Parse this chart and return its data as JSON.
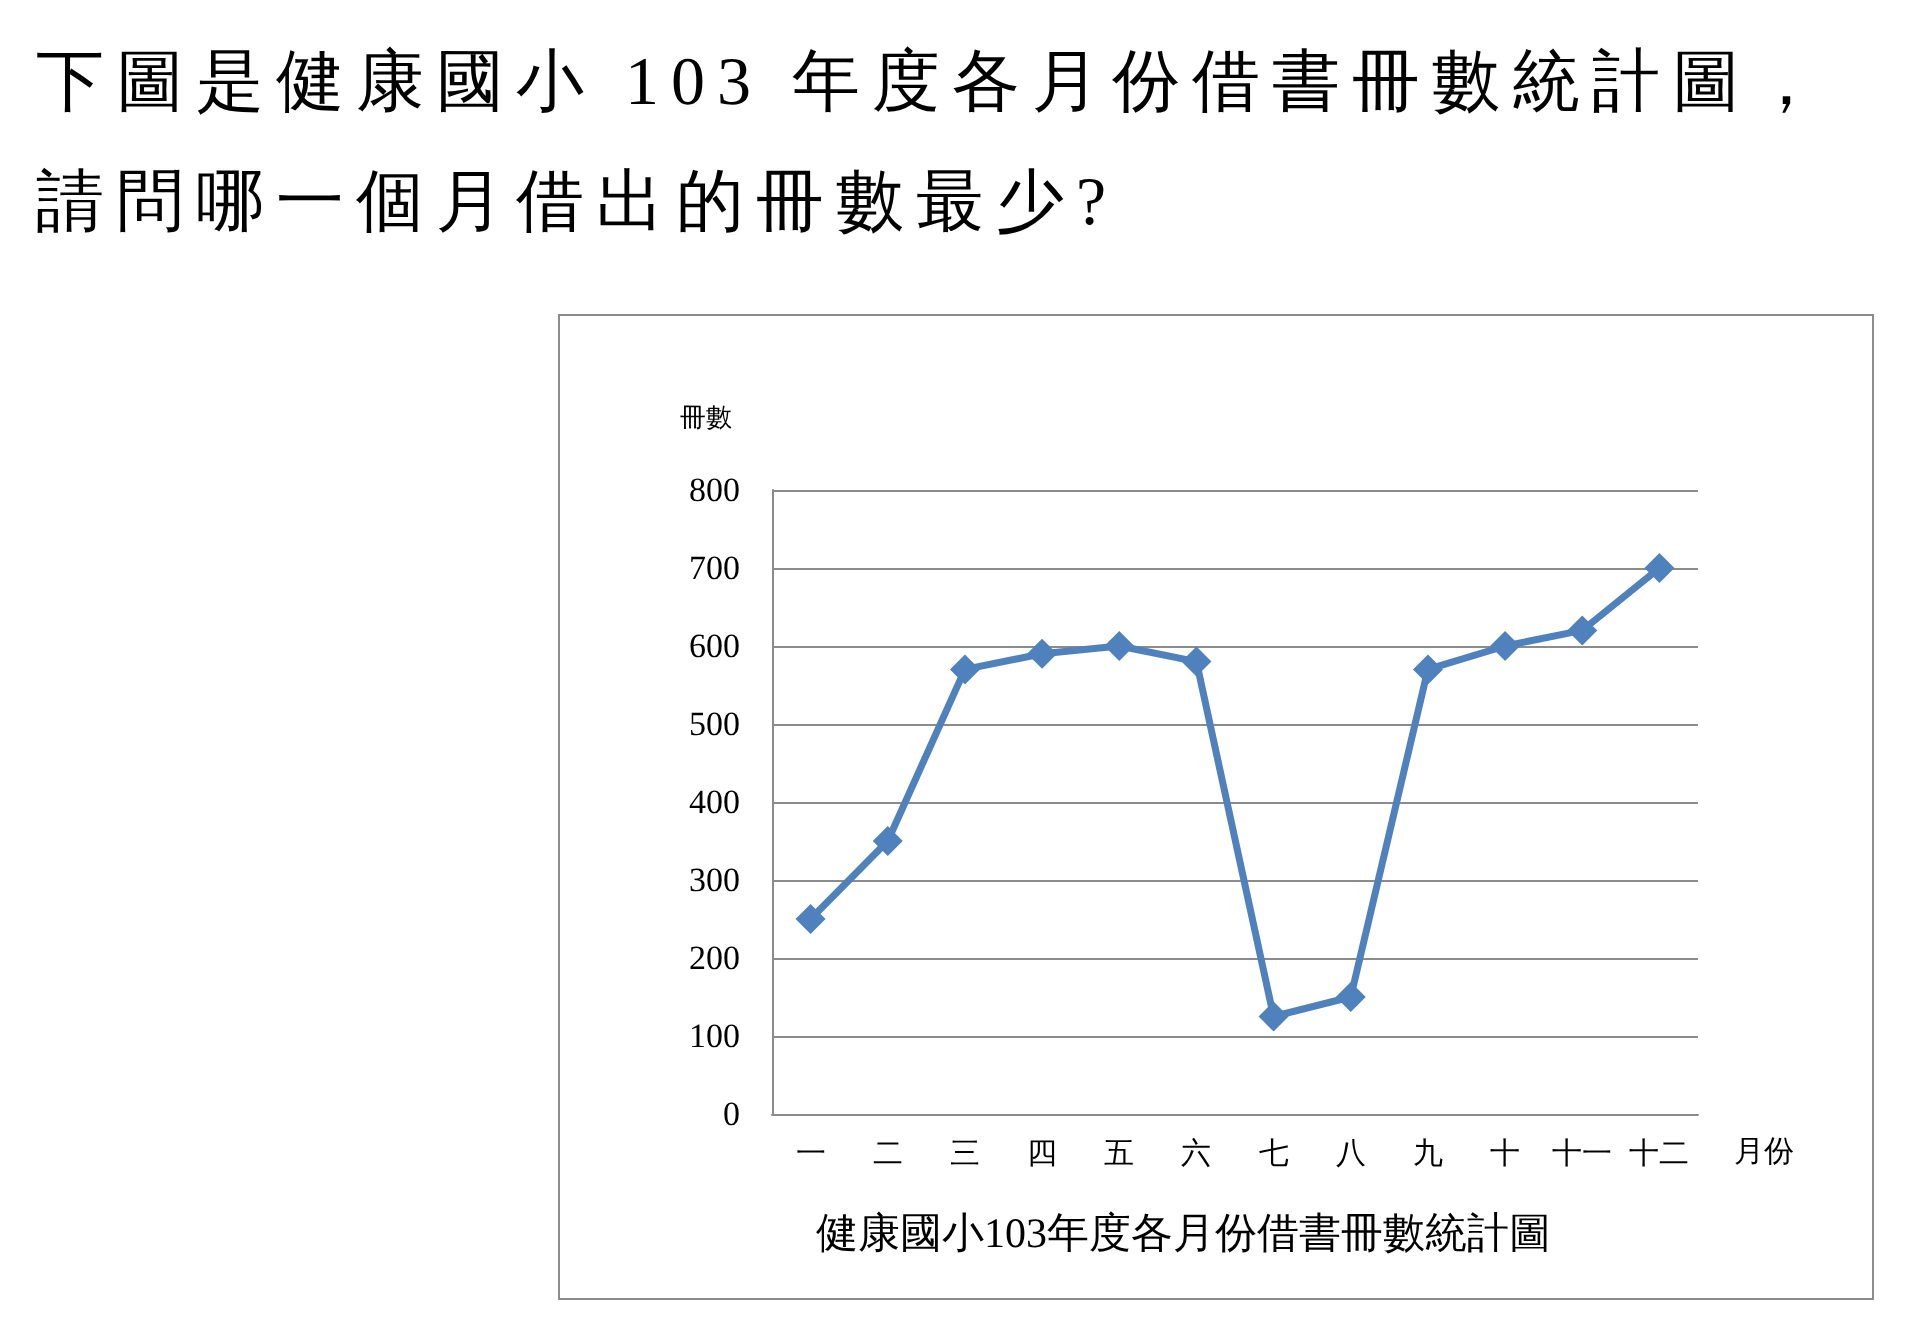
{
  "chart_data": {
    "type": "line",
    "title": "下圖是健康國小 103 年度各月份借書冊數統計圖，請問哪一個月借出的冊數最少?",
    "xlabel": "月份",
    "ylabel": "冊數",
    "annotations": [
      "健康國小103年度各月份借書冊數統計圖"
    ],
    "categories": [
      "一",
      "二",
      "三",
      "四",
      "五",
      "六",
      "七",
      "八",
      "九",
      "十",
      "十一",
      "十二"
    ],
    "series": [
      {
        "color": "#4f81bd",
        "values": [
          250,
          350,
          570,
          590,
          600,
          580,
          125,
          150,
          570,
          600,
          620,
          700
        ]
      }
    ],
    "ylim": [
      0,
      800
    ],
    "yticks": [
      0,
      100,
      200,
      300,
      400,
      500,
      600,
      700,
      800
    ],
    "grid": "y",
    "marker": "diamond",
    "line_style": "solid"
  }
}
